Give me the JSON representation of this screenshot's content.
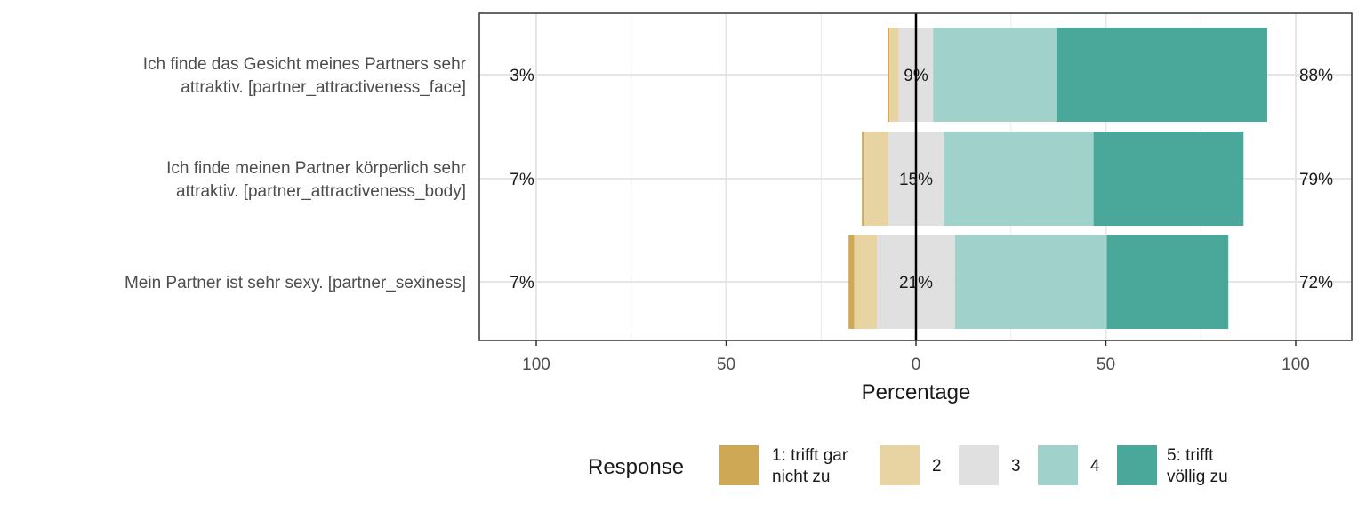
{
  "chart_data": {
    "type": "bar",
    "orientation": "horizontal",
    "stacked": "diverging",
    "xlabel": "Percentage",
    "xlim": [
      -115,
      115
    ],
    "xticks": [
      {
        "value": -100,
        "label": "100"
      },
      {
        "value": -50,
        "label": "50"
      },
      {
        "value": 0,
        "label": "0"
      },
      {
        "value": 50,
        "label": "50"
      },
      {
        "value": 100,
        "label": "100"
      }
    ],
    "grid": true,
    "categories": [
      {
        "label_lines": [
          "Ich finde das Gesicht meines Partners sehr",
          "attraktiv. [partner_attractiveness_face]"
        ],
        "values": [
          0.5,
          2.5,
          9,
          32.5,
          55.5
        ],
        "low": "3%",
        "neutral": "9%",
        "high": "88%"
      },
      {
        "label_lines": [
          "Ich finde meinen Partner körperlich sehr",
          "attraktiv. [partner_attractiveness_body]"
        ],
        "values": [
          0.5,
          6.5,
          14.5,
          39.5,
          39.5
        ],
        "low": "7%",
        "neutral": "15%",
        "high": "79%"
      },
      {
        "label_lines": [
          "Mein Partner ist sehr sexy. [partner_sexiness]"
        ],
        "values": [
          1.5,
          6,
          20.5,
          40,
          32
        ],
        "low": "7%",
        "neutral": "21%",
        "high": "72%"
      }
    ],
    "legend": {
      "title": "Response",
      "position": "bottom",
      "items": [
        {
          "label_lines": [
            "1: trifft gar",
            "nicht zu"
          ],
          "color": "#cfa855"
        },
        {
          "label_lines": [
            "2"
          ],
          "color": "#e8d3a3"
        },
        {
          "label_lines": [
            "3"
          ],
          "color": "#e0e0e0"
        },
        {
          "label_lines": [
            "4"
          ],
          "color": "#a0d2cb"
        },
        {
          "label_lines": [
            "5: trifft",
            "völlig zu"
          ],
          "color": "#4aa89b"
        }
      ]
    }
  }
}
